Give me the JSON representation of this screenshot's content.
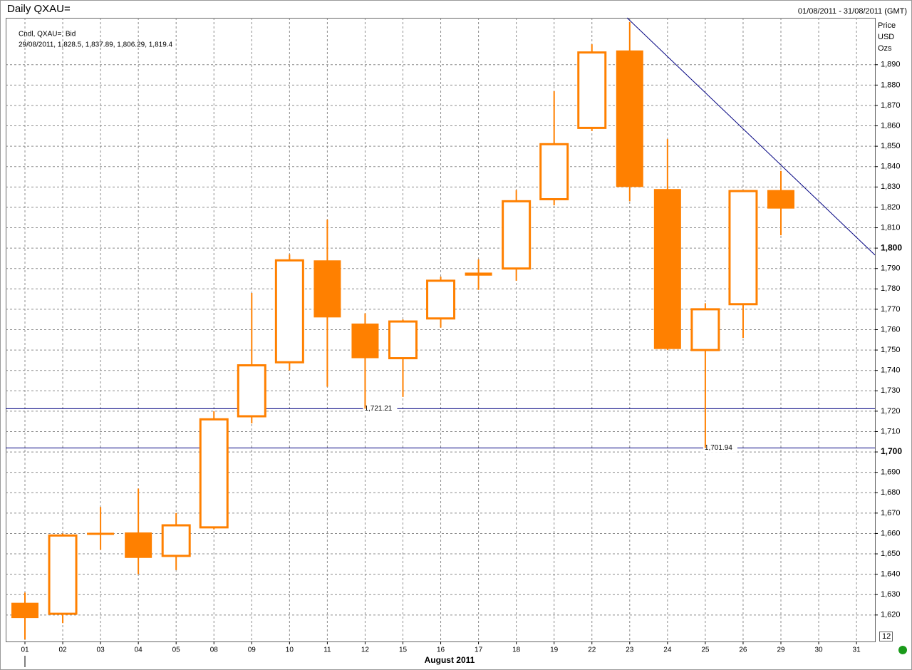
{
  "chart_data": {
    "type": "candlestick",
    "title": "Daily QXAU=",
    "date_range": "01/08/2011 - 31/08/2011 (GMT)",
    "y_axis_label": [
      "Price",
      "USD",
      "Ozs"
    ],
    "x_axis_label": "August 2011",
    "legend_detail": "29/08/2011, 1,828.5, 1,837.89, 1,806.29, 1,819.4",
    "axis_badge": "12",
    "categories": [
      "01",
      "02",
      "03",
      "04",
      "05",
      "08",
      "09",
      "10",
      "11",
      "12",
      "15",
      "16",
      "17",
      "18",
      "19",
      "22",
      "23",
      "24",
      "25",
      "26",
      "29",
      "30",
      "31"
    ],
    "series": [
      {
        "name": "Cndl, QXAU=, Bid",
        "color": "#ff8000",
        "open": [
          1626,
          1620.6,
          1660,
          1660.5,
          1649,
          1663,
          1717.5,
          1744,
          1794,
          1763,
          1746,
          1765.5,
          1788,
          1790,
          1824,
          1859,
          1897,
          1829,
          1750,
          1772.5,
          1828.5,
          null,
          null
        ],
        "high": [
          1631,
          1660,
          1673,
          1682,
          1670,
          1720,
          1778,
          1797,
          1814,
          1768,
          1765,
          1786,
          1794.5,
          1828.5,
          1877,
          1900,
          1911,
          1853.5,
          1773,
          1828,
          1837.89,
          null,
          null
        ],
        "low": [
          1608,
          1616,
          1652,
          1640,
          1642,
          1662,
          1714,
          1740,
          1732,
          1721.21,
          1727,
          1761,
          1779.5,
          1784,
          1821,
          1857.5,
          1823,
          1750,
          1701.94,
          1756,
          1806.29,
          null,
          null
        ],
        "close": [
          1618.5,
          1659,
          1659.5,
          1648,
          1664,
          1716,
          1742.5,
          1794,
          1766,
          1746,
          1764,
          1784,
          1786.5,
          1823,
          1851,
          1896,
          1830,
          1750.5,
          1770,
          1828,
          1819.4,
          null,
          null
        ]
      }
    ],
    "levels": [
      {
        "value": 1721.21,
        "label": "1,721.21",
        "category": "12",
        "color": "#000080"
      },
      {
        "value": 1701.94,
        "label": "1,701.94",
        "category": "25",
        "color": "#000080"
      }
    ],
    "trendline": {
      "x": [
        15.93,
        22.49
      ],
      "values": [
        1913,
        1796.6
      ],
      "color": "#000080"
    },
    "ylim": [
      1607,
      1913
    ],
    "yticks": [
      {
        "value": 1620,
        "label": "1,620"
      },
      {
        "value": 1630,
        "label": "1,630"
      },
      {
        "value": 1640,
        "label": "1,640"
      },
      {
        "value": 1650,
        "label": "1,650"
      },
      {
        "value": 1660,
        "label": "1,660"
      },
      {
        "value": 1670,
        "label": "1,670"
      },
      {
        "value": 1680,
        "label": "1,680"
      },
      {
        "value": 1690,
        "label": "1,690"
      },
      {
        "value": 1700,
        "label": "1,700"
      },
      {
        "value": 1710,
        "label": "1,710"
      },
      {
        "value": 1720,
        "label": "1,720"
      },
      {
        "value": 1730,
        "label": "1,730"
      },
      {
        "value": 1740,
        "label": "1,740"
      },
      {
        "value": 1750,
        "label": "1,750"
      },
      {
        "value": 1760,
        "label": "1,760"
      },
      {
        "value": 1770,
        "label": "1,770"
      },
      {
        "value": 1780,
        "label": "1,780"
      },
      {
        "value": 1790,
        "label": "1,790"
      },
      {
        "value": 1800,
        "label": "1,800"
      },
      {
        "value": 1810,
        "label": "1,810"
      },
      {
        "value": 1820,
        "label": "1,820"
      },
      {
        "value": 1830,
        "label": "1,830"
      },
      {
        "value": 1840,
        "label": "1,840"
      },
      {
        "value": 1850,
        "label": "1,850"
      },
      {
        "value": 1860,
        "label": "1,860"
      },
      {
        "value": 1870,
        "label": "1,870"
      },
      {
        "value": 1880,
        "label": "1,880"
      },
      {
        "value": 1890,
        "label": "1,890"
      }
    ],
    "major_tick_step": 100,
    "grid": true
  }
}
